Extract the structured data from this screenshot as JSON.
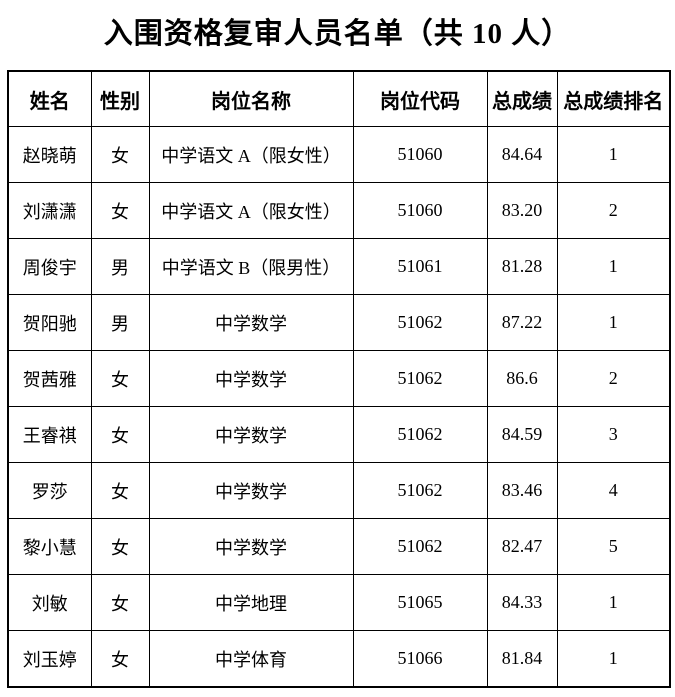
{
  "title": "入围资格复审人员名单（共 10 人）",
  "table": {
    "columns": [
      {
        "key": "name",
        "label": "姓名"
      },
      {
        "key": "gender",
        "label": "性别"
      },
      {
        "key": "position-name",
        "label": "岗位名称"
      },
      {
        "key": "position-code",
        "label": "岗位代码"
      },
      {
        "key": "total-score",
        "label": "总成绩"
      },
      {
        "key": "rank",
        "label": "总成绩排名"
      }
    ],
    "rows": [
      [
        "赵晓萌",
        "女",
        "中学语文 A（限女性）",
        "51060",
        "84.64",
        "1"
      ],
      [
        "刘潇潇",
        "女",
        "中学语文 A（限女性）",
        "51060",
        "83.20",
        "2"
      ],
      [
        "周俊宇",
        "男",
        "中学语文 B（限男性）",
        "51061",
        "81.28",
        "1"
      ],
      [
        "贺阳驰",
        "男",
        "中学数学",
        "51062",
        "87.22",
        "1"
      ],
      [
        "贺茜雅",
        "女",
        "中学数学",
        "51062",
        "86.6",
        "2"
      ],
      [
        "王睿祺",
        "女",
        "中学数学",
        "51062",
        "84.59",
        "3"
      ],
      [
        "罗莎",
        "女",
        "中学数学",
        "51062",
        "83.46",
        "4"
      ],
      [
        "黎小慧",
        "女",
        "中学数学",
        "51062",
        "82.47",
        "5"
      ],
      [
        "刘敏",
        "女",
        "中学地理",
        "51065",
        "84.33",
        "1"
      ],
      [
        "刘玉婷",
        "女",
        "中学体育",
        "51066",
        "81.84",
        "1"
      ]
    ],
    "numeric_column_keys": [
      "position-code",
      "total-score",
      "rank"
    ],
    "total_count_label": "10"
  },
  "colors": {
    "text": "#000000",
    "border": "#000000",
    "background": "#ffffff"
  }
}
